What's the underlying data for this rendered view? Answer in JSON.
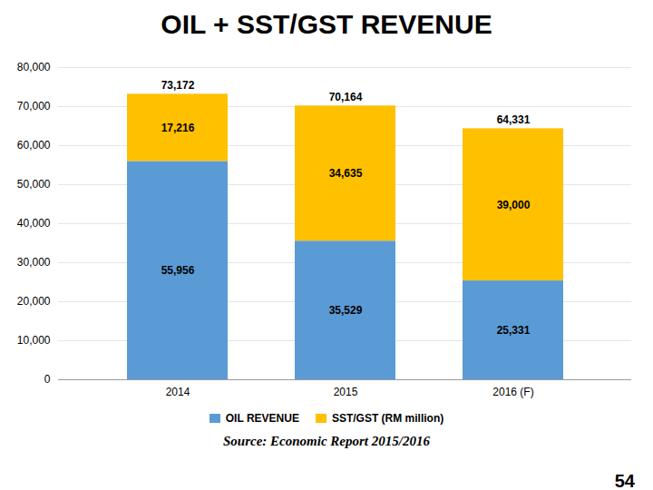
{
  "chart_data": {
    "type": "bar",
    "title": "OIL + SST/GST REVENUE",
    "categories": [
      "2014",
      "2015",
      "2016 (F)"
    ],
    "series": [
      {
        "name": "OIL REVENUE",
        "color": "#5B9BD5",
        "values": [
          55956,
          35529,
          25331
        ],
        "value_labels": [
          "55,956",
          "35,529",
          "25,331"
        ]
      },
      {
        "name": "SST/GST (RM million)",
        "color": "#FFC000",
        "values": [
          17216,
          34635,
          39000
        ],
        "value_labels": [
          "17,216",
          "34,635",
          "39,000"
        ]
      }
    ],
    "totals": [
      73172,
      70164,
      64331
    ],
    "total_labels": [
      "73,172",
      "70,164",
      "64,331"
    ],
    "stacked": true,
    "data_labels": true,
    "ylim": [
      0,
      80000
    ],
    "yticks": [
      0,
      {
        "value": 10000,
        "label": "10,000"
      },
      {
        "value": 20000,
        "label": "20,000"
      },
      {
        "value": 30000,
        "label": "30,000"
      },
      {
        "value": 40000,
        "label": "40,000"
      },
      {
        "value": 50000,
        "label": "50,000"
      },
      {
        "value": 60000,
        "label": "60,000"
      },
      {
        "value": 70000,
        "label": "70,000"
      },
      {
        "value": 80000,
        "label": "80,000"
      }
    ],
    "grid": true,
    "legend": "bottom",
    "source": "Source: Economic Report 2015/2016",
    "page_number": "54"
  }
}
